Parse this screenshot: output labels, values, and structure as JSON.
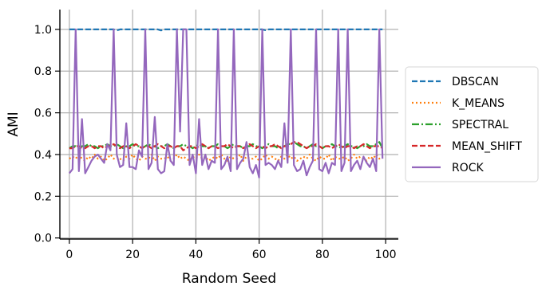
{
  "chart_data": {
    "type": "line",
    "title": "",
    "xlabel": "Random Seed",
    "ylabel": "AMI",
    "xlim": [
      -3,
      104
    ],
    "ylim": [
      -0.005,
      1.095
    ],
    "xticks": [
      0,
      20,
      40,
      60,
      80,
      100
    ],
    "yticks": [
      0.0,
      0.2,
      0.4,
      0.6,
      0.8,
      1.0
    ],
    "xtick_labels": [
      "0",
      "20",
      "40",
      "60",
      "80",
      "100"
    ],
    "ytick_labels": [
      "0.0",
      "0.2",
      "0.4",
      "0.6",
      "0.8",
      "1.0"
    ],
    "grid": true,
    "legend_position": "center-right outside",
    "x": [
      0,
      1,
      2,
      3,
      4,
      5,
      6,
      7,
      8,
      9,
      10,
      11,
      12,
      13,
      14,
      15,
      16,
      17,
      18,
      19,
      20,
      21,
      22,
      23,
      24,
      25,
      26,
      27,
      28,
      29,
      30,
      31,
      32,
      33,
      34,
      35,
      36,
      37,
      38,
      39,
      40,
      41,
      42,
      43,
      44,
      45,
      46,
      47,
      48,
      49,
      50,
      51,
      52,
      53,
      54,
      55,
      56,
      57,
      58,
      59,
      60,
      61,
      62,
      63,
      64,
      65,
      66,
      67,
      68,
      69,
      70,
      71,
      72,
      73,
      74,
      75,
      76,
      77,
      78,
      79,
      80,
      81,
      82,
      83,
      84,
      85,
      86,
      87,
      88,
      89,
      90,
      91,
      92,
      93,
      94,
      95,
      96,
      97,
      98,
      99
    ],
    "series": [
      {
        "name": "DBSCAN",
        "color": "#1f77b4",
        "dash": "dashed",
        "values": [
          1.0,
          1.0,
          1.0,
          1.0,
          1.0,
          1.0,
          1.0,
          1.0,
          1.0,
          1.0,
          1.0,
          1.0,
          1.0,
          1.0,
          1.0,
          0.995,
          1.0,
          1.0,
          1.0,
          1.0,
          1.0,
          1.0,
          1.0,
          1.0,
          1.0,
          1.0,
          1.0,
          1.0,
          1.0,
          0.995,
          1.0,
          1.0,
          1.0,
          1.0,
          1.0,
          1.0,
          1.0,
          1.0,
          1.0,
          1.0,
          1.0,
          1.0,
          1.0,
          1.0,
          1.0,
          1.0,
          1.0,
          1.0,
          1.0,
          1.0,
          1.0,
          1.0,
          1.0,
          1.0,
          1.0,
          1.0,
          1.0,
          1.0,
          1.0,
          1.0,
          1.0,
          1.0,
          0.996,
          1.0,
          1.0,
          1.0,
          1.0,
          1.0,
          1.0,
          1.0,
          1.0,
          1.0,
          1.0,
          1.0,
          1.0,
          1.0,
          1.0,
          1.0,
          1.0,
          1.0,
          1.0,
          1.0,
          1.0,
          1.0,
          1.0,
          1.0,
          1.0,
          1.0,
          1.0,
          1.0,
          1.0,
          1.0,
          1.0,
          1.0,
          1.0,
          1.0,
          1.0,
          1.0,
          1.0,
          1.0
        ]
      },
      {
        "name": "K_MEANS",
        "color": "#ff7f0e",
        "dash": "dotted",
        "values": [
          0.38,
          0.39,
          0.38,
          0.4,
          0.38,
          0.37,
          0.39,
          0.38,
          0.4,
          0.38,
          0.39,
          0.37,
          0.38,
          0.4,
          0.38,
          0.39,
          0.38,
          0.37,
          0.39,
          0.38,
          0.4,
          0.38,
          0.37,
          0.39,
          0.38,
          0.38,
          0.4,
          0.37,
          0.39,
          0.38,
          0.38,
          0.39,
          0.37,
          0.38,
          0.4,
          0.38,
          0.39,
          0.38,
          0.37,
          0.39,
          0.38,
          0.4,
          0.38,
          0.39,
          0.37,
          0.38,
          0.39,
          0.38,
          0.4,
          0.38,
          0.37,
          0.39,
          0.38,
          0.38,
          0.4,
          0.37,
          0.39,
          0.38,
          0.38,
          0.39,
          0.37,
          0.38,
          0.4,
          0.38,
          0.39,
          0.38,
          0.37,
          0.39,
          0.38,
          0.4,
          0.38,
          0.39,
          0.37,
          0.38,
          0.39,
          0.38,
          0.4,
          0.38,
          0.37,
          0.39,
          0.38,
          0.38,
          0.4,
          0.37,
          0.39,
          0.38,
          0.38,
          0.39,
          0.37,
          0.38,
          0.4,
          0.38,
          0.39,
          0.38,
          0.37,
          0.39,
          0.38,
          0.4,
          0.38,
          0.39
        ]
      },
      {
        "name": "SPECTRAL",
        "color": "#2ca02c",
        "dash": "dashdot",
        "values": [
          0.43,
          0.44,
          0.44,
          0.43,
          0.44,
          0.44,
          0.45,
          0.44,
          0.44,
          0.43,
          0.44,
          0.44,
          0.45,
          0.44,
          0.44,
          0.45,
          0.44,
          0.43,
          0.44,
          0.44,
          0.45,
          0.44,
          0.44,
          0.43,
          0.44,
          0.45,
          0.44,
          0.44,
          0.43,
          0.44,
          0.44,
          0.45,
          0.44,
          0.43,
          0.44,
          0.44,
          0.45,
          0.44,
          0.44,
          0.43,
          0.44,
          0.45,
          0.44,
          0.44,
          0.43,
          0.44,
          0.44,
          0.45,
          0.44,
          0.44,
          0.43,
          0.44,
          0.45,
          0.44,
          0.44,
          0.43,
          0.44,
          0.44,
          0.45,
          0.44,
          0.44,
          0.43,
          0.44,
          0.45,
          0.44,
          0.44,
          0.43,
          0.44,
          0.44,
          0.45,
          0.45,
          0.46,
          0.45,
          0.44,
          0.44,
          0.43,
          0.44,
          0.45,
          0.44,
          0.44,
          0.43,
          0.44,
          0.44,
          0.45,
          0.44,
          0.44,
          0.43,
          0.44,
          0.45,
          0.44,
          0.44,
          0.43,
          0.44,
          0.44,
          0.45,
          0.44,
          0.44,
          0.45,
          0.46,
          0.43
        ]
      },
      {
        "name": "MEAN_SHIFT",
        "color": "#d62728",
        "dash": "dashed",
        "values": [
          0.43,
          0.43,
          0.44,
          0.44,
          0.43,
          0.43,
          0.44,
          0.44,
          0.43,
          0.44,
          0.44,
          0.43,
          0.44,
          0.44,
          0.45,
          0.44,
          0.43,
          0.44,
          0.44,
          0.43,
          0.44,
          0.45,
          0.44,
          0.43,
          0.44,
          0.44,
          0.43,
          0.44,
          0.45,
          0.44,
          0.43,
          0.44,
          0.44,
          0.43,
          0.44,
          0.44,
          0.42,
          0.43,
          0.44,
          0.44,
          0.43,
          0.44,
          0.45,
          0.44,
          0.43,
          0.44,
          0.44,
          0.43,
          0.44,
          0.44,
          0.45,
          0.44,
          0.43,
          0.44,
          0.44,
          0.43,
          0.44,
          0.45,
          0.44,
          0.43,
          0.44,
          0.44,
          0.43,
          0.44,
          0.44,
          0.45,
          0.44,
          0.43,
          0.44,
          0.44,
          0.45,
          0.46,
          0.46,
          0.45,
          0.44,
          0.43,
          0.44,
          0.44,
          0.45,
          0.44,
          0.43,
          0.44,
          0.44,
          0.43,
          0.44,
          0.45,
          0.44,
          0.43,
          0.44,
          0.44,
          0.43,
          0.44,
          0.44,
          0.45,
          0.44,
          0.43,
          0.44,
          0.44,
          0.44,
          0.43
        ]
      },
      {
        "name": "ROCK",
        "color": "#9467bd",
        "dash": "solid",
        "values": [
          0.31,
          0.33,
          1.0,
          0.32,
          0.57,
          0.31,
          0.34,
          0.37,
          0.39,
          0.4,
          0.38,
          0.36,
          0.45,
          0.42,
          1.0,
          0.4,
          0.34,
          0.35,
          0.55,
          0.34,
          0.34,
          0.33,
          0.42,
          0.39,
          1.0,
          0.33,
          0.36,
          0.58,
          0.33,
          0.31,
          0.32,
          0.45,
          0.37,
          0.35,
          1.0,
          0.51,
          1.0,
          1.0,
          0.35,
          0.4,
          0.31,
          0.57,
          0.35,
          0.4,
          0.33,
          0.37,
          0.36,
          1.0,
          0.33,
          0.35,
          0.39,
          0.32,
          1.0,
          0.33,
          0.36,
          0.38,
          0.46,
          0.34,
          0.31,
          0.35,
          0.29,
          1.0,
          0.35,
          0.36,
          0.35,
          0.33,
          0.37,
          0.34,
          0.55,
          0.36,
          1.0,
          0.35,
          0.32,
          0.33,
          0.37,
          0.3,
          0.34,
          0.37,
          1.0,
          0.33,
          0.32,
          0.36,
          0.31,
          0.36,
          0.35,
          1.0,
          0.32,
          0.36,
          1.0,
          0.32,
          0.35,
          0.37,
          0.33,
          0.39,
          0.36,
          0.34,
          0.38,
          0.32,
          1.0,
          0.38
        ]
      }
    ]
  }
}
